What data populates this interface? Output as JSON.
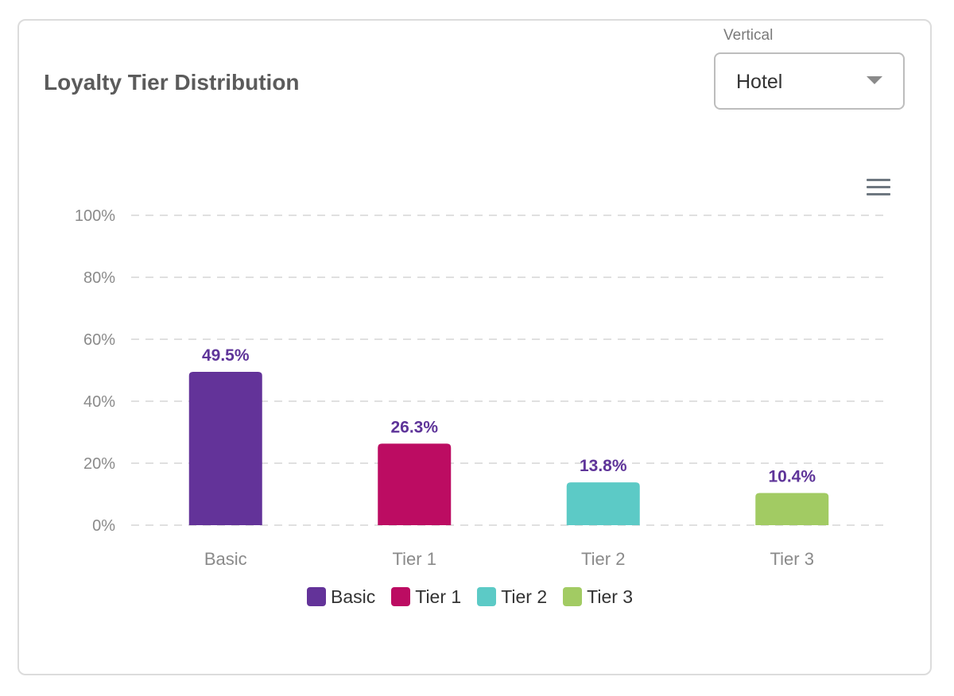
{
  "card": {
    "title": "Loyalty Tier Distribution"
  },
  "vertical_select": {
    "label": "Vertical",
    "value": "Hotel"
  },
  "toolbar": {
    "menu_icon": "hamburger-menu-icon"
  },
  "colors": {
    "label_color": "#5e3499",
    "grid_color": "#e0e0e0",
    "axis_text": "#8a8a8a"
  },
  "chart_data": {
    "type": "bar",
    "categories": [
      "Basic",
      "Tier 1",
      "Tier 2",
      "Tier 3"
    ],
    "values": [
      49.5,
      26.3,
      13.8,
      10.4
    ],
    "value_labels": [
      "49.5%",
      "26.3%",
      "13.8%",
      "10.4%"
    ],
    "colors": [
      "#633399",
      "#bc0c62",
      "#5ccac6",
      "#a2cb63"
    ],
    "yticks": [
      "0%",
      "20%",
      "40%",
      "60%",
      "80%",
      "100%"
    ],
    "ylim": [
      0,
      100
    ],
    "grid": true,
    "legend": {
      "position": "bottom-center",
      "items": [
        "Basic",
        "Tier 1",
        "Tier 2",
        "Tier 3"
      ]
    }
  }
}
